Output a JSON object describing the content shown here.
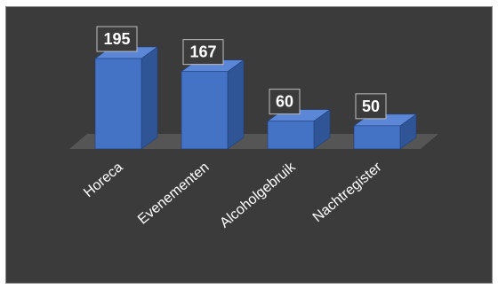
{
  "chart_data": {
    "type": "bar",
    "style": "3d-column",
    "categories": [
      "Horeca",
      "Evenementen",
      "Alcoholgebruik",
      "Nachtregister"
    ],
    "values": [
      195,
      167,
      60,
      50
    ],
    "data_labels": [
      "195",
      "167",
      "60",
      "50"
    ],
    "title": "",
    "xlabel": "",
    "ylabel": "",
    "ylim": [
      0,
      200
    ],
    "grid": false,
    "legend": "none"
  },
  "colors": {
    "background": "#3b3b3b",
    "border": "#8a8a8a",
    "bar_front": "#4472c4",
    "bar_side": "#2f5597",
    "bar_top": "#5b87d6",
    "floor": "#595959",
    "label_box": "#3b3b3b",
    "label_border": "#bfbfbf",
    "text": "#ffffff"
  }
}
